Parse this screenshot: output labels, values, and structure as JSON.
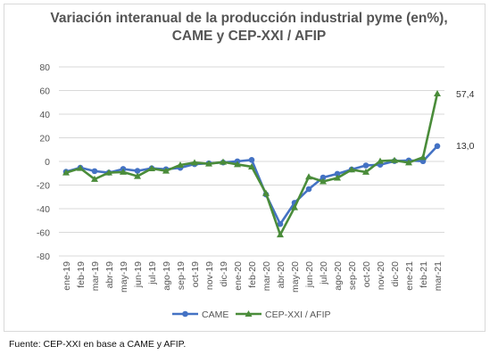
{
  "title_line1": "Variación interanual de la producción industrial pyme (en%),",
  "title_line2": "CAME y CEP-XXI / AFIP",
  "source": "Fuente: CEP-XXI en base a CAME y AFIP.",
  "chart_data": {
    "type": "line",
    "categories": [
      "ene-19",
      "feb-19",
      "mar-19",
      "abr-19",
      "may-19",
      "jun-19",
      "jul-19",
      "ago-19",
      "sep-19",
      "oct-19",
      "nov-19",
      "dic-19",
      "ene-20",
      "feb-20",
      "mar-20",
      "abr-20",
      "may-20",
      "jun-20",
      "jul-20",
      "ago-20",
      "sep-20",
      "oct-20",
      "nov-20",
      "dic-20",
      "ene-21",
      "feb-21",
      "mar-21"
    ],
    "ylim": [
      -80,
      80
    ],
    "yticks": [
      80,
      60,
      40,
      20,
      0,
      -20,
      -40,
      -60,
      -80
    ],
    "grid": true,
    "legend_position": "bottom",
    "series": [
      {
        "name": "CAME",
        "color": "#4472c4",
        "marker": "circle",
        "values": [
          -8.7,
          -5.3,
          -8.2,
          -9.5,
          -6.4,
          -8.0,
          -5.8,
          -6.6,
          -5.4,
          -2.3,
          -1.6,
          -0.9,
          0.1,
          1.3,
          -28.0,
          -53.0,
          -35.0,
          -23.4,
          -13.6,
          -10.5,
          -6.8,
          -3.4,
          -2.8,
          0.3,
          0.8,
          0.2,
          13.0
        ]
      },
      {
        "name": "CEP-XXI / AFIP",
        "color": "#4a8c3a",
        "marker": "triangle",
        "values": [
          -9.5,
          -5.8,
          -15.0,
          -9.5,
          -9.0,
          -12.5,
          -6.0,
          -8.0,
          -3.0,
          -1.0,
          -2.0,
          -0.5,
          -2.5,
          -4.5,
          -27.0,
          -62.0,
          -39.0,
          -13.0,
          -17.0,
          -14.0,
          -7.0,
          -9.0,
          0.3,
          0.9,
          -1.0,
          3.5,
          57.4
        ]
      }
    ],
    "end_labels": [
      "57,4",
      "13,0"
    ]
  }
}
